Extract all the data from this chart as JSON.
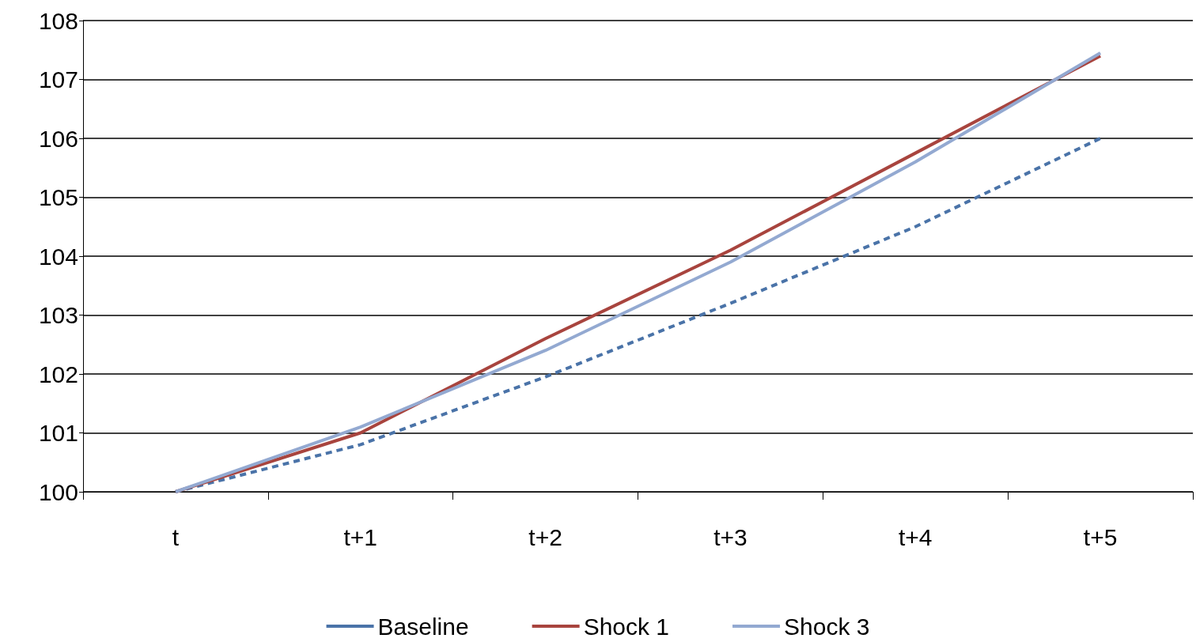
{
  "chart_data": {
    "type": "line",
    "categories": [
      "t",
      "t+1",
      "t+2",
      "t+3",
      "t+4",
      "t+5"
    ],
    "series": [
      {
        "name": "Baseline",
        "color": "#4a73a8",
        "line_style": "dashed",
        "values": [
          100,
          100.8,
          101.95,
          103.2,
          104.5,
          106.0
        ]
      },
      {
        "name": "Shock 1",
        "color": "#a8443e",
        "line_style": "solid",
        "values": [
          100,
          101.0,
          102.6,
          104.1,
          105.75,
          107.4
        ]
      },
      {
        "name": "Shock 3",
        "color": "#93a9d1",
        "line_style": "solid",
        "values": [
          100,
          101.1,
          102.4,
          103.9,
          105.6,
          107.45
        ]
      }
    ],
    "ylim": [
      100,
      108
    ],
    "yticks": [
      100,
      101,
      102,
      103,
      104,
      105,
      106,
      107,
      108
    ],
    "grid": "y",
    "legend": "bottom",
    "marker": "none"
  }
}
